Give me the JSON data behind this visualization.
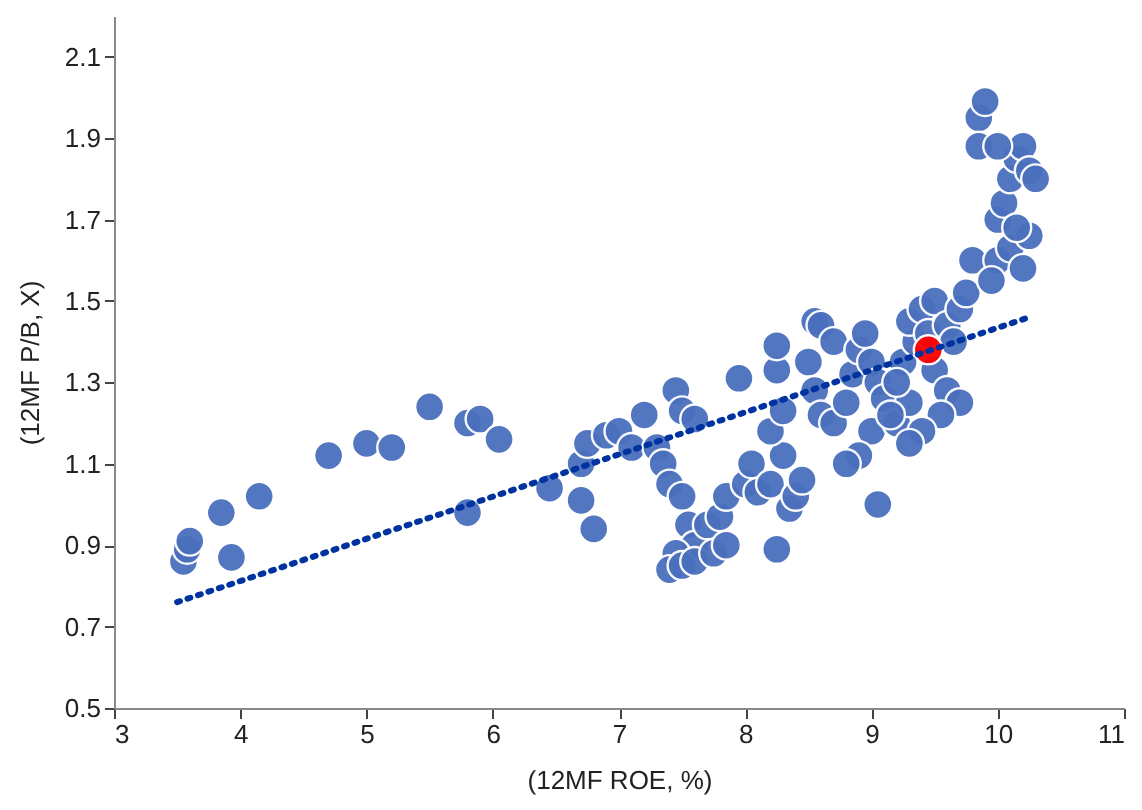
{
  "chart_data": {
    "type": "scatter",
    "xlabel": "(12MF ROE, %)",
    "ylabel": "(12MF P/B, X)",
    "xlim": [
      3,
      11
    ],
    "xticks": [
      3,
      4,
      5,
      6,
      7,
      8,
      9,
      10,
      11
    ],
    "ylim": [
      0.5,
      2.2
    ],
    "yticks": [
      0.5,
      0.7,
      0.9,
      1.1,
      1.3,
      1.5,
      1.7,
      1.9,
      2.1
    ],
    "grid": false,
    "marker": "circle",
    "series": [
      {
        "color": "#4a6fbd",
        "x": [
          3.55,
          3.58,
          3.6,
          3.85,
          3.93,
          4.15,
          4.7,
          5.0,
          5.2,
          5.5,
          5.8,
          5.9,
          6.05,
          5.8,
          6.45,
          6.7,
          6.7,
          6.8,
          6.75,
          6.9,
          7.0,
          7.1,
          7.2,
          7.3,
          7.35,
          7.4,
          7.45,
          7.5,
          7.6,
          7.5,
          7.55,
          7.6,
          7.7,
          7.8,
          7.85,
          7.45,
          7.4,
          7.5,
          7.6,
          7.75,
          7.85,
          8.0,
          8.05,
          8.1,
          8.2,
          8.25,
          8.35,
          8.4,
          8.45,
          8.3,
          8.2,
          8.3,
          7.95,
          8.25,
          8.25,
          8.5,
          8.55,
          8.6,
          8.7,
          8.55,
          8.6,
          8.7,
          8.8,
          8.85,
          8.9,
          8.95,
          9.0,
          9.05,
          9.1,
          9.0,
          8.9,
          8.8,
          9.05,
          9.2,
          9.3,
          9.25,
          9.35,
          9.3,
          9.4,
          9.5,
          9.45,
          9.6,
          9.65,
          9.5,
          9.6,
          9.7,
          9.55,
          9.4,
          9.3,
          9.15,
          9.2,
          9.7,
          9.75,
          9.8,
          9.85,
          9.9,
          9.85,
          10.0,
          10.05,
          10.1,
          10.15,
          10.2,
          10.25,
          10.3,
          10.0,
          10.1,
          10.2,
          10.25,
          9.95,
          10.0,
          10.15
        ],
        "values": [
          0.86,
          0.89,
          0.91,
          0.98,
          0.87,
          1.02,
          1.12,
          1.15,
          1.14,
          1.24,
          1.2,
          1.21,
          1.16,
          0.98,
          1.04,
          1.1,
          1.01,
          0.94,
          1.15,
          1.17,
          1.18,
          1.14,
          1.22,
          1.14,
          1.1,
          1.05,
          1.28,
          1.23,
          1.21,
          1.02,
          0.95,
          0.9,
          0.95,
          0.97,
          1.02,
          0.88,
          0.84,
          0.85,
          0.86,
          0.88,
          0.9,
          1.05,
          1.1,
          1.03,
          1.05,
          0.89,
          0.99,
          1.02,
          1.06,
          1.12,
          1.18,
          1.23,
          1.31,
          1.33,
          1.39,
          1.35,
          1.45,
          1.44,
          1.4,
          1.28,
          1.22,
          1.2,
          1.25,
          1.32,
          1.38,
          1.42,
          1.35,
          1.3,
          1.26,
          1.18,
          1.12,
          1.1,
          1.0,
          1.2,
          1.25,
          1.35,
          1.4,
          1.45,
          1.48,
          1.5,
          1.42,
          1.44,
          1.4,
          1.33,
          1.28,
          1.25,
          1.22,
          1.18,
          1.15,
          1.22,
          1.3,
          1.48,
          1.52,
          1.6,
          1.95,
          1.99,
          1.88,
          1.7,
          1.74,
          1.8,
          1.85,
          1.88,
          1.82,
          1.8,
          1.6,
          1.63,
          1.58,
          1.66,
          1.55,
          1.88,
          1.68
        ]
      },
      {
        "color": "#ff0000",
        "x": [
          9.45
        ],
        "values": [
          1.38
        ]
      },
      {
        "type": "line",
        "color": "#0033a0",
        "line_style": "dotted",
        "marker": "none",
        "x": [
          3.5,
          10.25
        ],
        "values": [
          0.76,
          1.46
        ]
      }
    ]
  }
}
